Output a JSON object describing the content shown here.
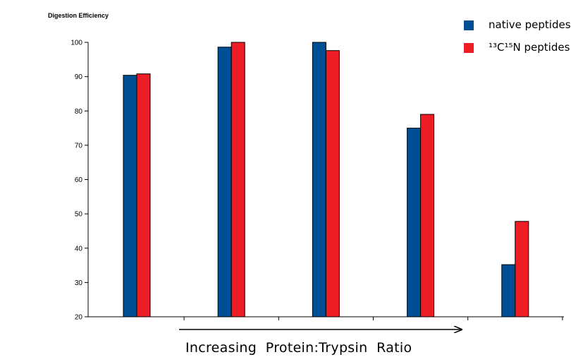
{
  "chart_data": {
    "type": "bar",
    "title": "Digestion Efficiency",
    "xlabel": "Increasing  Protein:Trypsin  Ratio",
    "ylabel": "",
    "ylim": [
      20,
      100
    ],
    "yticks": [
      "20",
      "30",
      "40",
      "50",
      "60",
      "70",
      "80",
      "90",
      "100"
    ],
    "categories": [
      "",
      "",
      "",
      "",
      ""
    ],
    "series": [
      {
        "name": "native peptides",
        "color": "#004e94",
        "values": [
          90.4,
          98.6,
          100,
          75,
          35.2
        ]
      },
      {
        "name": "¹³C¹⁵N peptides",
        "color": "#ee1c24",
        "values": [
          90.8,
          100,
          97.6,
          79,
          47.8
        ]
      }
    ],
    "grid": false,
    "legend": "top-right",
    "annotation": "arrow pointing right (increasing ratio)"
  }
}
